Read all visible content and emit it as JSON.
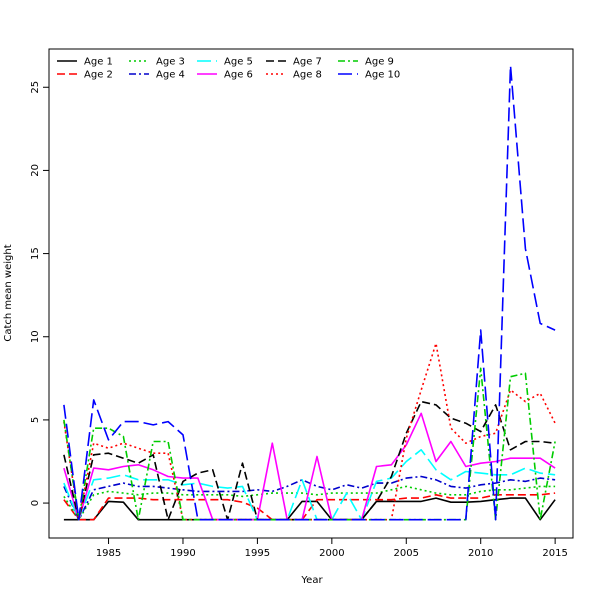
{
  "chart_data": {
    "type": "line",
    "title": "",
    "xlabel": "Year",
    "ylabel": "Catch mean weight",
    "xlim": [
      1981,
      2016.2
    ],
    "ylim": [
      -2.1,
      27.3
    ],
    "x_ticks": [
      1985,
      1990,
      1995,
      2000,
      2005,
      2010,
      2015
    ],
    "y_ticks": [
      0,
      5,
      10,
      15,
      20,
      25
    ],
    "grid": false,
    "legend_position": "top-left",
    "x": [
      1982,
      1983,
      1984,
      1985,
      1986,
      1987,
      1988,
      1989,
      1990,
      1991,
      1992,
      1993,
      1994,
      1995,
      1996,
      1997,
      1998,
      1999,
      2000,
      2001,
      2002,
      2003,
      2004,
      2005,
      2006,
      2007,
      2008,
      2009,
      2010,
      2011,
      2012,
      2013,
      2014,
      2015
    ],
    "series": [
      {
        "name": "Age 1",
        "color": "#000000",
        "dash": "solid",
        "values": [
          -1,
          -1,
          -1,
          0.1,
          0.05,
          -1,
          -1,
          -1,
          -1,
          -1,
          -1,
          -1,
          -1,
          -1,
          -1,
          -1,
          0.1,
          0.1,
          -1,
          -1,
          -1,
          0.1,
          0.1,
          0.1,
          0.1,
          0.3,
          0.05,
          0.05,
          0.1,
          0.2,
          0.3,
          0.3,
          -1,
          0.2
        ]
      },
      {
        "name": "Age 2",
        "color": "#ff0000",
        "dash": "dashed",
        "values": [
          0.2,
          -1,
          -1,
          0.3,
          0.3,
          0.3,
          0.2,
          0.2,
          0.2,
          0.2,
          0.2,
          0.2,
          0.05,
          -0.3,
          -1,
          -1,
          -1,
          0.2,
          0.2,
          0.2,
          0.2,
          0.2,
          0.2,
          0.3,
          0.3,
          0.5,
          0.3,
          0.3,
          0.3,
          0.5,
          0.5,
          0.5,
          0.5,
          0.6
        ]
      },
      {
        "name": "Age 3",
        "color": "#00cc00",
        "dash": "dotted",
        "values": [
          0.4,
          -1,
          0.5,
          0.7,
          0.6,
          0.5,
          0.6,
          0.6,
          0.5,
          0.5,
          0.5,
          0.5,
          0.4,
          0.5,
          0.6,
          0.6,
          0.6,
          0.5,
          0.6,
          0.6,
          0.6,
          0.6,
          0.8,
          1.0,
          0.8,
          0.6,
          0.5,
          0.5,
          0.7,
          0.8,
          0.8,
          0.9,
          1.0,
          1.0
        ]
      },
      {
        "name": "Age 4",
        "color": "#0000cc",
        "dash": "dashdot",
        "values": [
          1.0,
          -1,
          0.8,
          1.0,
          1.2,
          1.0,
          1.0,
          0.9,
          0.8,
          0.7,
          0.7,
          0.7,
          0.7,
          0.8,
          0.7,
          1.0,
          1.4,
          1.0,
          0.8,
          1.1,
          0.9,
          1.2,
          1.2,
          1.5,
          1.6,
          1.4,
          1.0,
          0.9,
          1.1,
          1.2,
          1.4,
          1.3,
          1.5,
          1.4
        ]
      },
      {
        "name": "Age 5",
        "color": "#00ffff",
        "dash": "longdash",
        "values": [
          1.2,
          -1,
          1.4,
          1.5,
          1.7,
          1.4,
          1.4,
          1.4,
          1.1,
          1.2,
          1.0,
          0.9,
          1.0,
          -1,
          -1,
          -1,
          1.4,
          -1,
          -1,
          0.6,
          -1,
          1.3,
          1.5,
          2.5,
          3.2,
          2.0,
          1.4,
          1.9,
          1.8,
          1.7,
          1.7,
          2.1,
          1.8,
          1.7
        ]
      },
      {
        "name": "Age 6",
        "color": "#ff00ff",
        "dash": "solid",
        "values": [
          2.1,
          -1,
          2.1,
          2.0,
          2.2,
          2.3,
          2.0,
          1.6,
          1.5,
          1.5,
          -1,
          -1,
          -1,
          -1,
          3.6,
          -1,
          -1,
          2.8,
          -1,
          -1,
          -1,
          2.2,
          2.3,
          3.5,
          5.4,
          2.5,
          3.7,
          2.2,
          2.4,
          2.5,
          2.7,
          2.7,
          2.7,
          2.1
        ]
      },
      {
        "name": "Age 7",
        "color": "#000000",
        "dash": "dashed",
        "values": [
          2.9,
          -1,
          2.9,
          3.0,
          2.7,
          2.4,
          2.9,
          -1,
          1.3,
          1.8,
          2.0,
          -1,
          2.4,
          -1,
          -1,
          -1,
          -1,
          -1,
          -1,
          -1,
          -1,
          0.1,
          1.6,
          4.2,
          6.1,
          5.9,
          5.1,
          4.8,
          4.3,
          5.9,
          3.2,
          3.7,
          3.7,
          3.6
        ]
      },
      {
        "name": "Age 8",
        "color": "#ff0000",
        "dash": "dotted",
        "values": [
          4.9,
          -1,
          3.6,
          3.3,
          3.6,
          3.3,
          3.0,
          3.0,
          -1,
          -1,
          -1,
          -1,
          -1,
          -1,
          -1,
          -1,
          -1,
          -1,
          -1,
          -1,
          -1,
          -1,
          -1,
          3.9,
          6.8,
          9.6,
          4.5,
          3.6,
          4.0,
          4.2,
          6.8,
          6.1,
          6.6,
          4.8
        ]
      },
      {
        "name": "Age 9",
        "color": "#00cc00",
        "dash": "dashdot",
        "values": [
          5.0,
          -1,
          4.5,
          4.5,
          4.0,
          -1,
          3.7,
          3.7,
          -1,
          -1,
          -1,
          -1,
          -1,
          -1,
          -1,
          -1,
          -1,
          -1,
          -1,
          -1,
          -1,
          -1,
          -1,
          -1,
          -1,
          -1,
          -1,
          -1,
          8.1,
          -1,
          7.6,
          7.8,
          -1,
          3.7
        ]
      },
      {
        "name": "Age 10",
        "color": "#0000ff",
        "dash": "longdash",
        "values": [
          5.9,
          -1,
          6.2,
          3.8,
          4.9,
          4.9,
          4.7,
          4.9,
          4.1,
          -1,
          -1,
          -1,
          -1,
          -1,
          -1,
          -1,
          -1,
          -1,
          -1,
          -1,
          -1,
          -1,
          -1,
          -1,
          -1,
          -1,
          -1,
          -1,
          10.4,
          -1,
          26.3,
          15.3,
          10.8,
          10.4
        ]
      }
    ]
  }
}
